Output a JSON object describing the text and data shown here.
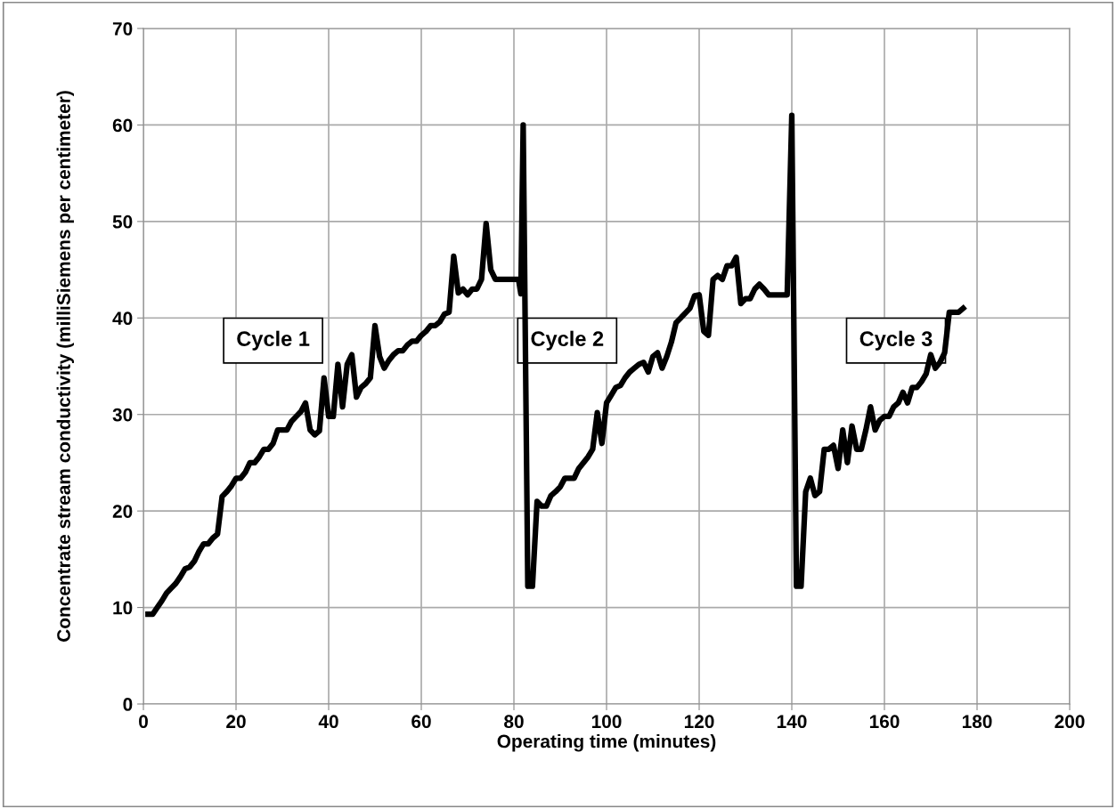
{
  "chart_data": {
    "type": "line",
    "xlabel": "Operating time (minutes)",
    "ylabel": "Concentrate stream conductivity (milliSiemens per centimeter)",
    "annotations": [
      "Cycle 1",
      "Cycle 2",
      "Cycle 3"
    ],
    "x": [
      1,
      2,
      3,
      4,
      5,
      6,
      7,
      8,
      9,
      10,
      11,
      12,
      13,
      14,
      15,
      16,
      17,
      18,
      19,
      20,
      21,
      22,
      23,
      24,
      25,
      26,
      27,
      28,
      29,
      30,
      31,
      32,
      33,
      34,
      35,
      36,
      37,
      38,
      39,
      40,
      41,
      42,
      43,
      44,
      45,
      46,
      47,
      48,
      49,
      50,
      51,
      52,
      53,
      54,
      55,
      56,
      57,
      58,
      59,
      60,
      61,
      62,
      63,
      64,
      65,
      66,
      67,
      68,
      69,
      70,
      71,
      72,
      73,
      74,
      75,
      76,
      77,
      78,
      79,
      80,
      81,
      81.5,
      82,
      83,
      84,
      85,
      86,
      87,
      88,
      89,
      90,
      91,
      92,
      93,
      94,
      95,
      96,
      97,
      98,
      99,
      100,
      101,
      102,
      103,
      104,
      105,
      106,
      107,
      108,
      109,
      110,
      111,
      112,
      113,
      114,
      115,
      116,
      117,
      118,
      119,
      120,
      121,
      122,
      123,
      124,
      125,
      126,
      127,
      128,
      129,
      130,
      131,
      132,
      133,
      134,
      135,
      136,
      137,
      138,
      139,
      140,
      141,
      142,
      143,
      144,
      145,
      146,
      147,
      148,
      149,
      150,
      151,
      152,
      153,
      154,
      155,
      156,
      157,
      158,
      159,
      160,
      161,
      162,
      163,
      164,
      165,
      166,
      167,
      168,
      169,
      170,
      171,
      172,
      173,
      174,
      175,
      176,
      177
    ],
    "series": [
      {
        "color": "#000000",
        "values": [
          9.3,
          9.3,
          10,
          10.7,
          11.5,
          12,
          12.5,
          13.2,
          14,
          14.2,
          14.8,
          15.8,
          16.6,
          16.6,
          17.2,
          17.6,
          21.5,
          22,
          22.6,
          23.4,
          23.4,
          24,
          25,
          25,
          25.6,
          26.4,
          26.4,
          27,
          28.4,
          28.4,
          28.4,
          29.3,
          29.8,
          30.3,
          31.2,
          28.4,
          27.9,
          28.3,
          33.8,
          29.8,
          29.8,
          35.2,
          30.8,
          35.2,
          36.2,
          31.8,
          32.8,
          33.2,
          33.8,
          39.2,
          36,
          34.8,
          35.6,
          36.2,
          36.6,
          36.6,
          37.2,
          37.6,
          37.6,
          38.2,
          38.6,
          39.2,
          39.2,
          39.6,
          40.4,
          40.6,
          46.4,
          42.6,
          43,
          42.4,
          43,
          43,
          44,
          49.8,
          45,
          44,
          44,
          44,
          44,
          44,
          44,
          42.5,
          60,
          12.2,
          12.2,
          21,
          20.5,
          20.5,
          21.6,
          22,
          22.5,
          23.4,
          23.4,
          23.4,
          24.4,
          25,
          25.6,
          26.4,
          30.2,
          27,
          31.2,
          32,
          32.8,
          33,
          33.8,
          34.4,
          34.8,
          35.2,
          35.4,
          34.4,
          36,
          36.4,
          34.8,
          36,
          37.5,
          39.5,
          40,
          40.5,
          41,
          42.3,
          42.4,
          38.6,
          38.2,
          44,
          44.4,
          44,
          45.4,
          45.4,
          46.3,
          41.5,
          42,
          42,
          43,
          43.5,
          43,
          42.4,
          42.4,
          42.4,
          42.4,
          42.4,
          61,
          12.2,
          12.2,
          22,
          23.4,
          21.6,
          22,
          26.4,
          26.4,
          26.8,
          24.4,
          28.4,
          25,
          28.8,
          26.4,
          26.4,
          28.4,
          30.8,
          28.4,
          29.4,
          29.8,
          29.8,
          30.8,
          31.2,
          32.3,
          31.2,
          32.8,
          32.8,
          33.4,
          34.2,
          36.2,
          34.8,
          35.4,
          36.4,
          40.6,
          40.6,
          40.6,
          41
        ]
      }
    ],
    "xlim": [
      0,
      200
    ],
    "xticks": [
      0,
      20,
      40,
      60,
      80,
      100,
      120,
      140,
      160,
      180,
      200
    ],
    "ylim": [
      0,
      70
    ],
    "yticks": [
      0,
      10,
      20,
      30,
      40,
      50,
      60,
      70
    ],
    "grid": true,
    "legend": false,
    "marker": "none",
    "line_style": "solid"
  }
}
